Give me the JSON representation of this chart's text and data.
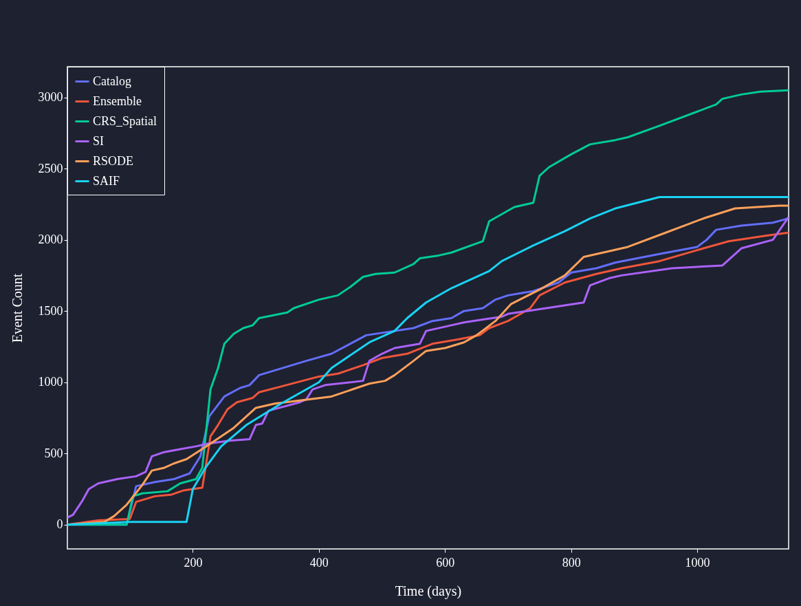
{
  "chart_data": {
    "type": "line",
    "xlabel": "Time (days)",
    "ylabel": "Event Count",
    "xlim": [
      1,
      1145
    ],
    "ylim": [
      -170,
      3215
    ],
    "xticks": [
      200,
      400,
      600,
      800,
      1000
    ],
    "yticks": [
      0,
      500,
      1000,
      1500,
      2000,
      2500,
      3000
    ],
    "grid": false,
    "legend": "top left",
    "marker": "none",
    "line_style": "solid",
    "series": [
      {
        "name": "Catalog",
        "color": "#636efa",
        "x": [
          1,
          95,
          110,
          140,
          170,
          195,
          212,
          226,
          250,
          275,
          290,
          305,
          380,
          420,
          475,
          550,
          580,
          610,
          630,
          660,
          680,
          700,
          740,
          780,
          800,
          840,
          870,
          940,
          1000,
          1015,
          1030,
          1070,
          1120,
          1145
        ],
        "values": [
          0,
          0,
          270,
          300,
          320,
          360,
          480,
          760,
          900,
          960,
          980,
          1050,
          1150,
          1200,
          1330,
          1380,
          1430,
          1450,
          1500,
          1520,
          1580,
          1610,
          1640,
          1700,
          1770,
          1800,
          1840,
          1900,
          1950,
          2000,
          2070,
          2100,
          2120,
          2150
        ]
      },
      {
        "name": "Ensemble",
        "color": "#ef553b",
        "x": [
          1,
          50,
          100,
          110,
          140,
          165,
          185,
          215,
          228,
          240,
          255,
          270,
          295,
          305,
          340,
          400,
          430,
          470,
          500,
          540,
          580,
          620,
          655,
          670,
          700,
          720,
          735,
          750,
          790,
          840,
          880,
          940,
          1010,
          1050,
          1110,
          1145
        ],
        "values": [
          0,
          30,
          40,
          160,
          200,
          210,
          240,
          260,
          620,
          700,
          810,
          860,
          890,
          930,
          970,
          1040,
          1060,
          1120,
          1170,
          1200,
          1270,
          1300,
          1330,
          1380,
          1430,
          1480,
          1520,
          1610,
          1700,
          1760,
          1800,
          1850,
          1940,
          1990,
          2030,
          2050
        ]
      },
      {
        "name": "CRS_Spatial",
        "color": "#00cc96",
        "x": [
          1,
          95,
          105,
          120,
          160,
          180,
          205,
          215,
          228,
          240,
          250,
          265,
          280,
          295,
          305,
          350,
          360,
          400,
          430,
          450,
          470,
          490,
          520,
          550,
          560,
          590,
          610,
          660,
          670,
          710,
          740,
          750,
          765,
          800,
          830,
          870,
          890,
          940,
          1000,
          1030,
          1040,
          1070,
          1100,
          1145
        ],
        "values": [
          0,
          0,
          200,
          220,
          235,
          290,
          320,
          400,
          950,
          1100,
          1270,
          1340,
          1380,
          1400,
          1450,
          1490,
          1520,
          1580,
          1610,
          1670,
          1740,
          1760,
          1770,
          1830,
          1870,
          1890,
          1910,
          1990,
          2130,
          2230,
          2260,
          2450,
          2510,
          2600,
          2670,
          2700,
          2720,
          2800,
          2900,
          2950,
          2990,
          3020,
          3040,
          3050
        ]
      },
      {
        "name": "SI",
        "color": "#ab63fa",
        "x": [
          1,
          10,
          25,
          35,
          50,
          80,
          110,
          125,
          135,
          155,
          180,
          205,
          225,
          260,
          290,
          300,
          310,
          320,
          370,
          380,
          390,
          410,
          470,
          480,
          500,
          520,
          560,
          570,
          610,
          630,
          660,
          690,
          700,
          730,
          820,
          830,
          860,
          880,
          960,
          1040,
          1070,
          1120,
          1145
        ],
        "values": [
          50,
          70,
          170,
          250,
          290,
          320,
          340,
          370,
          480,
          510,
          530,
          550,
          570,
          590,
          600,
          700,
          710,
          800,
          860,
          880,
          950,
          980,
          1010,
          1150,
          1200,
          1240,
          1270,
          1360,
          1400,
          1420,
          1440,
          1460,
          1480,
          1500,
          1560,
          1680,
          1730,
          1750,
          1800,
          1820,
          1940,
          2000,
          2160
        ]
      },
      {
        "name": "RSODE",
        "color": "#ffa15a",
        "x": [
          1,
          60,
          75,
          95,
          120,
          135,
          155,
          170,
          190,
          225,
          265,
          300,
          330,
          385,
          420,
          480,
          505,
          520,
          550,
          570,
          600,
          630,
          650,
          680,
          705,
          750,
          790,
          820,
          860,
          890,
          950,
          1010,
          1060,
          1130,
          1145
        ],
        "values": [
          0,
          20,
          60,
          140,
          280,
          380,
          400,
          430,
          460,
          560,
          680,
          820,
          850,
          880,
          900,
          990,
          1010,
          1050,
          1150,
          1220,
          1240,
          1280,
          1330,
          1430,
          1550,
          1650,
          1750,
          1880,
          1920,
          1950,
          2050,
          2150,
          2220,
          2240,
          2240
        ]
      },
      {
        "name": "SAIF",
        "color": "#19d3f3",
        "x": [
          1,
          100,
          190,
          200,
          220,
          245,
          285,
          340,
          400,
          420,
          480,
          520,
          540,
          570,
          610,
          670,
          690,
          740,
          790,
          830,
          870,
          940,
          1145
        ],
        "values": [
          0,
          20,
          20,
          250,
          400,
          550,
          700,
          850,
          1000,
          1100,
          1280,
          1360,
          1450,
          1560,
          1660,
          1780,
          1850,
          1960,
          2060,
          2150,
          2220,
          2300,
          2300
        ]
      }
    ]
  }
}
